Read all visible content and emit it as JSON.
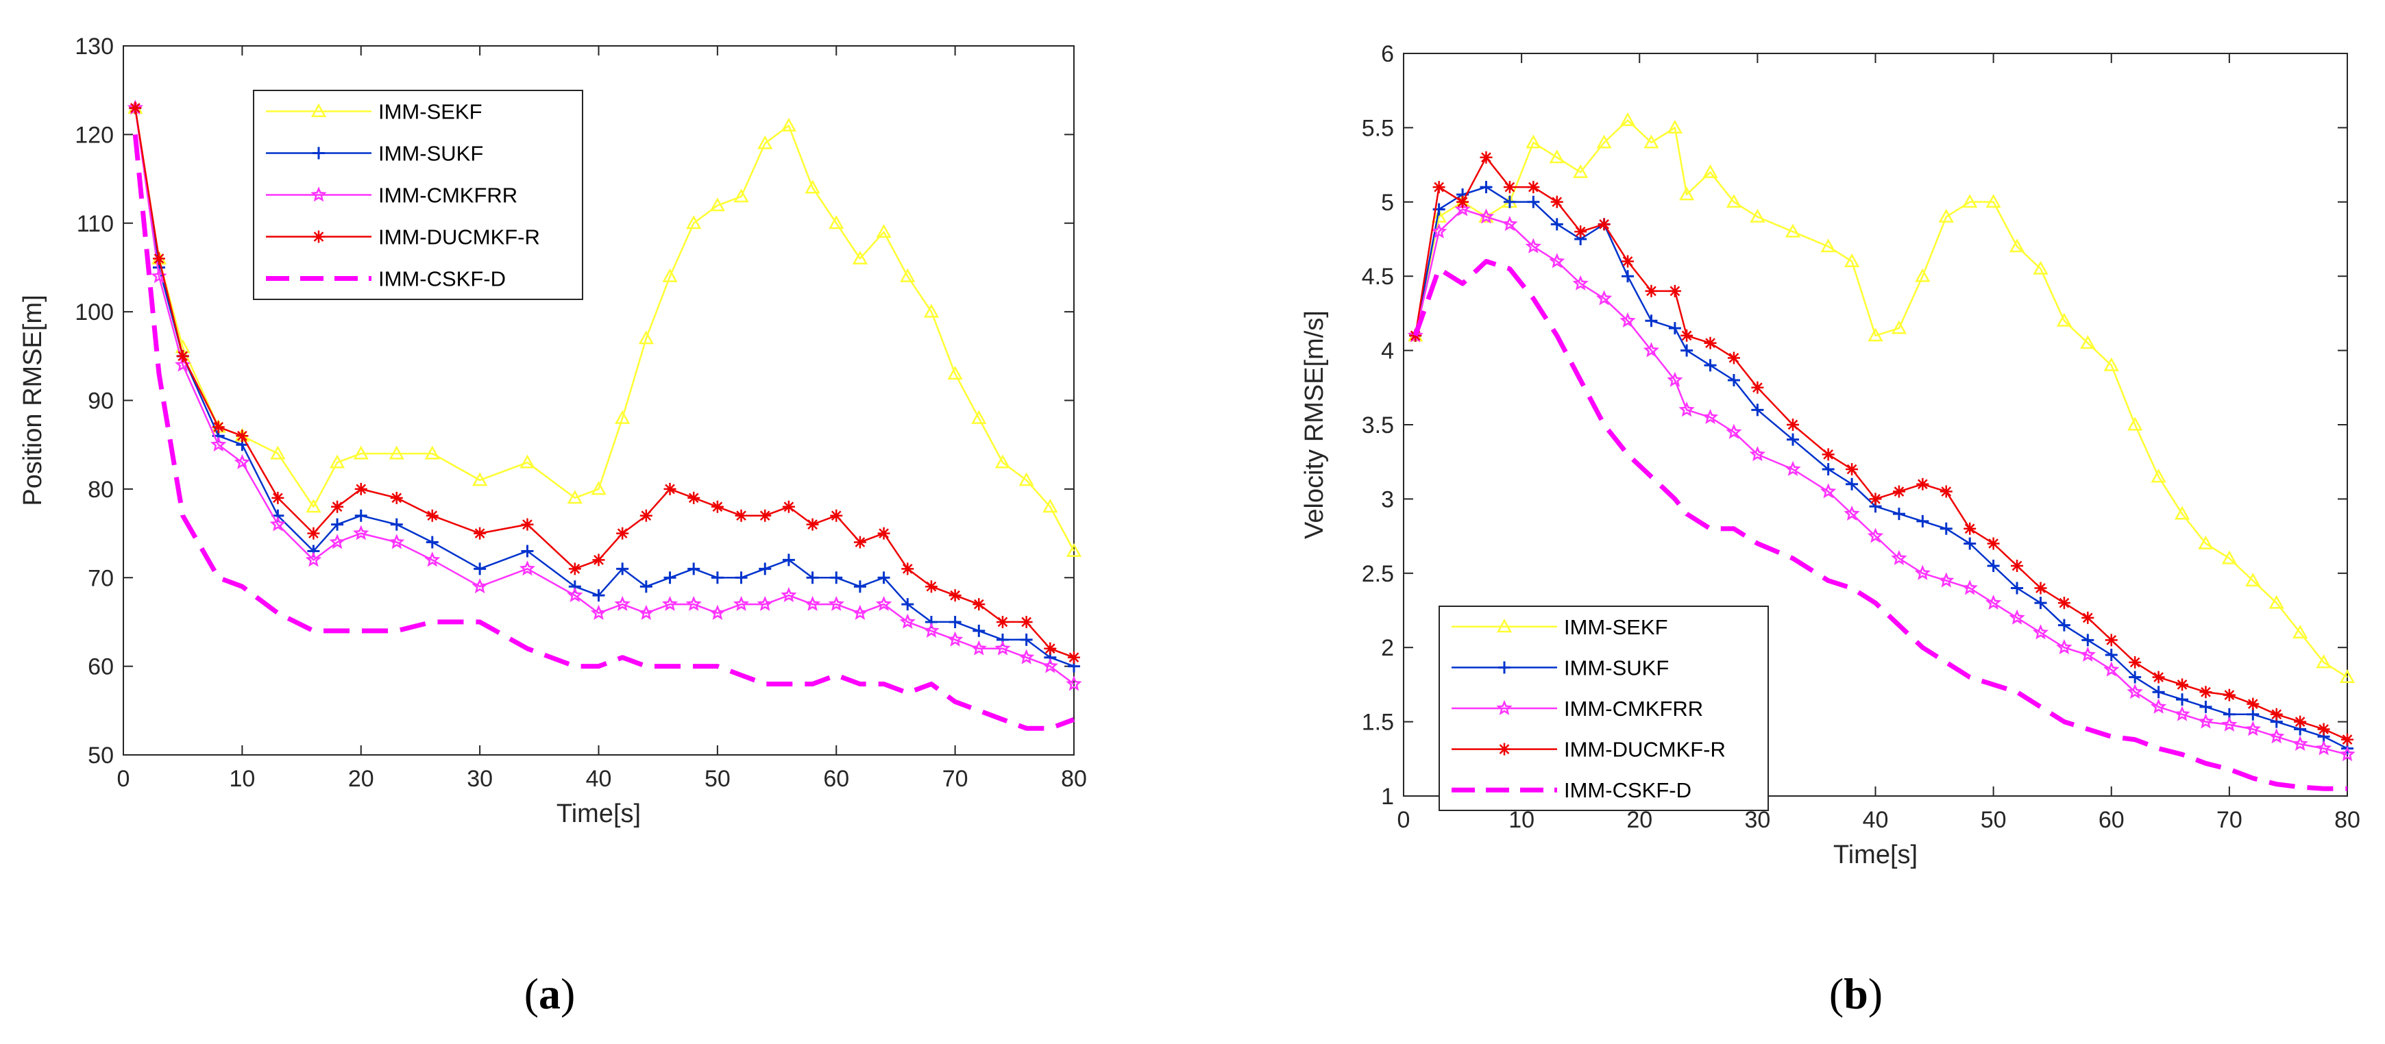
{
  "chart_data": [
    {
      "type": "line",
      "caption_letter": "a",
      "xlabel": "Time[s]",
      "ylabel": "Position RMSE[m]",
      "xlim": [
        0,
        80
      ],
      "ylim": [
        50,
        130
      ],
      "xticks": [
        0,
        10,
        20,
        30,
        40,
        50,
        60,
        70,
        80
      ],
      "yticks": [
        50,
        60,
        70,
        80,
        90,
        100,
        110,
        120,
        130
      ],
      "grid": false,
      "legend_position": "top-left",
      "x": [
        1,
        3,
        5,
        8,
        10,
        13,
        16,
        18,
        20,
        23,
        26,
        30,
        34,
        38,
        40,
        42,
        44,
        46,
        48,
        50,
        52,
        54,
        56,
        58,
        60,
        62,
        64,
        66,
        68,
        70,
        72,
        74,
        76,
        78,
        80
      ],
      "series": [
        {
          "name": "IMM-SEKF",
          "color": "#ffff33",
          "marker": "triangle",
          "dashed": false,
          "values": [
            123,
            106,
            96,
            87,
            86,
            84,
            78,
            83,
            84,
            84,
            84,
            81,
            83,
            79,
            80,
            88,
            97,
            104,
            110,
            112,
            113,
            119,
            121,
            114,
            110,
            106,
            109,
            104,
            100,
            93,
            88,
            83,
            81,
            78,
            73
          ]
        },
        {
          "name": "IMM-SUKF",
          "color": "#0033cc",
          "marker": "plus",
          "dashed": false,
          "values": [
            123,
            105,
            95,
            86,
            85,
            77,
            73,
            76,
            77,
            76,
            74,
            71,
            73,
            69,
            68,
            71,
            69,
            70,
            71,
            70,
            70,
            71,
            72,
            70,
            70,
            69,
            70,
            67,
            65,
            65,
            64,
            63,
            63,
            61,
            60
          ]
        },
        {
          "name": "IMM-CMKFRR",
          "color": "#ff33ff",
          "marker": "star",
          "dashed": false,
          "values": [
            123,
            104,
            94,
            85,
            83,
            76,
            72,
            74,
            75,
            74,
            72,
            69,
            71,
            68,
            66,
            67,
            66,
            67,
            67,
            66,
            67,
            67,
            68,
            67,
            67,
            66,
            67,
            65,
            64,
            63,
            62,
            62,
            61,
            60,
            58
          ]
        },
        {
          "name": "IMM-DUCMKF-R",
          "color": "#ee0000",
          "marker": "asterisk",
          "dashed": false,
          "values": [
            123,
            106,
            95,
            87,
            86,
            79,
            75,
            78,
            80,
            79,
            77,
            75,
            76,
            71,
            72,
            75,
            77,
            80,
            79,
            78,
            77,
            77,
            78,
            76,
            77,
            74,
            75,
            71,
            69,
            68,
            67,
            65,
            65,
            62,
            61
          ]
        },
        {
          "name": "IMM-CSKF-D",
          "color": "#ff00ff",
          "marker": "none",
          "dashed": true,
          "values": [
            120,
            93,
            77,
            70,
            69,
            66,
            64,
            64,
            64,
            64,
            65,
            65,
            62,
            60,
            60,
            61,
            60,
            60,
            60,
            60,
            59,
            58,
            58,
            58,
            59,
            58,
            58,
            57,
            58,
            56,
            55,
            54,
            53,
            53,
            54
          ]
        }
      ]
    },
    {
      "type": "line",
      "caption_letter": "b",
      "xlabel": "Time[s]",
      "ylabel": "Velocity RMSE[m/s]",
      "xlim": [
        0,
        80
      ],
      "ylim": [
        1,
        6
      ],
      "xticks": [
        0,
        10,
        20,
        30,
        40,
        50,
        60,
        70,
        80
      ],
      "yticks": [
        1,
        1.5,
        2,
        2.5,
        3,
        3.5,
        4,
        4.5,
        5,
        5.5,
        6
      ],
      "grid": false,
      "legend_position": "bottom-left",
      "x": [
        1,
        3,
        5,
        7,
        9,
        11,
        13,
        15,
        17,
        19,
        21,
        23,
        24,
        26,
        28,
        30,
        33,
        36,
        38,
        40,
        42,
        44,
        46,
        48,
        50,
        52,
        54,
        56,
        58,
        60,
        62,
        64,
        66,
        68,
        70,
        72,
        74,
        76,
        78,
        80
      ],
      "series": [
        {
          "name": "IMM-SEKF",
          "color": "#ffff33",
          "marker": "triangle",
          "dashed": false,
          "values": [
            4.1,
            4.9,
            5.0,
            4.9,
            5.0,
            5.4,
            5.3,
            5.2,
            5.4,
            5.55,
            5.4,
            5.5,
            5.05,
            5.2,
            5.0,
            4.9,
            4.8,
            4.7,
            4.6,
            4.1,
            4.15,
            4.5,
            4.9,
            5.0,
            5.0,
            4.7,
            4.55,
            4.2,
            4.05,
            3.9,
            3.5,
            3.15,
            2.9,
            2.7,
            2.6,
            2.45,
            2.3,
            2.1,
            1.9,
            1.8
          ]
        },
        {
          "name": "IMM-SUKF",
          "color": "#0033cc",
          "marker": "plus",
          "dashed": false,
          "values": [
            4.1,
            4.95,
            5.05,
            5.1,
            5.0,
            5.0,
            4.85,
            4.75,
            4.85,
            4.5,
            4.2,
            4.15,
            4.0,
            3.9,
            3.8,
            3.6,
            3.4,
            3.2,
            3.1,
            2.95,
            2.9,
            2.85,
            2.8,
            2.7,
            2.55,
            2.4,
            2.3,
            2.15,
            2.05,
            1.95,
            1.8,
            1.7,
            1.65,
            1.6,
            1.55,
            1.55,
            1.5,
            1.45,
            1.4,
            1.32
          ]
        },
        {
          "name": "IMM-CMKFRR",
          "color": "#ff33ff",
          "marker": "star",
          "dashed": false,
          "values": [
            4.1,
            4.8,
            4.95,
            4.9,
            4.85,
            4.7,
            4.6,
            4.45,
            4.35,
            4.2,
            4.0,
            3.8,
            3.6,
            3.55,
            3.45,
            3.3,
            3.2,
            3.05,
            2.9,
            2.75,
            2.6,
            2.5,
            2.45,
            2.4,
            2.3,
            2.2,
            2.1,
            2.0,
            1.95,
            1.85,
            1.7,
            1.6,
            1.55,
            1.5,
            1.48,
            1.45,
            1.4,
            1.35,
            1.32,
            1.28
          ]
        },
        {
          "name": "IMM-DUCMKF-R",
          "color": "#ee0000",
          "marker": "asterisk",
          "dashed": false,
          "values": [
            4.1,
            5.1,
            5.0,
            5.3,
            5.1,
            5.1,
            5.0,
            4.8,
            4.85,
            4.6,
            4.4,
            4.4,
            4.1,
            4.05,
            3.95,
            3.75,
            3.5,
            3.3,
            3.2,
            3.0,
            3.05,
            3.1,
            3.05,
            2.8,
            2.7,
            2.55,
            2.4,
            2.3,
            2.2,
            2.05,
            1.9,
            1.8,
            1.75,
            1.7,
            1.68,
            1.62,
            1.55,
            1.5,
            1.45,
            1.38
          ]
        },
        {
          "name": "IMM-CSKF-D",
          "color": "#ff00ff",
          "marker": "none",
          "dashed": true,
          "values": [
            4.1,
            4.55,
            4.45,
            4.6,
            4.55,
            4.35,
            4.1,
            3.8,
            3.5,
            3.3,
            3.15,
            3.0,
            2.9,
            2.8,
            2.8,
            2.7,
            2.6,
            2.45,
            2.4,
            2.3,
            2.15,
            2.0,
            1.9,
            1.8,
            1.75,
            1.7,
            1.6,
            1.5,
            1.45,
            1.4,
            1.38,
            1.32,
            1.28,
            1.22,
            1.18,
            1.12,
            1.08,
            1.06,
            1.05,
            1.05
          ]
        }
      ]
    }
  ],
  "captions": [
    {
      "open": "(",
      "letter": "a",
      "close": ")"
    },
    {
      "open": "(",
      "letter": "b",
      "close": ")"
    }
  ]
}
